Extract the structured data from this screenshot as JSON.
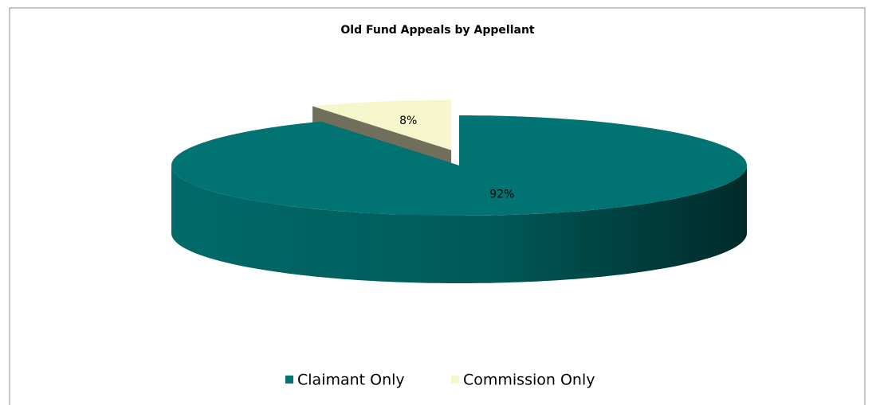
{
  "chart_data": {
    "type": "pie",
    "title": "Old Fund Appeals by Appellant",
    "categories": [
      "Claimant Only",
      "Commission Only"
    ],
    "values": [
      92,
      8
    ],
    "value_labels": [
      "92%",
      "8%"
    ],
    "colors": [
      "#007372",
      "#f6f6cc"
    ],
    "legend": "bottom"
  }
}
